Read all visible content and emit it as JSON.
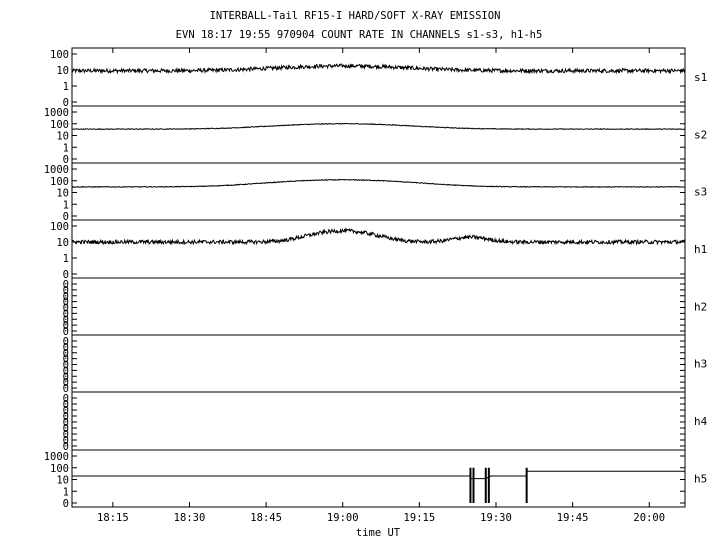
{
  "title_line1": "INTERBALL-Tail RF15-I HARD/SOFT X-RAY EMISSION",
  "title_line2": "EVN 18:17 19:55 970904  COUNT RATE IN CHANNELS s1-s3, h1-h5",
  "chart_data": {
    "type": "line",
    "title": "INTERBALL-Tail RF15-I HARD/SOFT X-RAY EMISSION",
    "subtitle": "EVN 18:17 19:55 970904  COUNT RATE IN CHANNELS s1-s3, h1-h5",
    "xlabel": "time UT",
    "x_ticks": [
      "18:15",
      "18:30",
      "18:45",
      "19:00",
      "19:15",
      "19:30",
      "19:45",
      "20:00"
    ],
    "x_range_minutes_UT": [
      "18:07",
      "20:07"
    ],
    "y_scale": "log",
    "grid": false,
    "panels": [
      {
        "name": "s1",
        "y_ticks": [
          "100",
          "10",
          "1",
          "0"
        ],
        "baseline": 9,
        "peak": 18,
        "peak_time": "19:00"
      },
      {
        "name": "s2",
        "y_ticks": [
          "1000",
          "100",
          "10",
          "1",
          "0"
        ],
        "baseline": 35,
        "peak": 100,
        "peak_time": "19:00"
      },
      {
        "name": "s3",
        "y_ticks": [
          "1000",
          "100",
          "10",
          "1",
          "0"
        ],
        "baseline": 30,
        "peak": 120,
        "peak_time": "19:00"
      },
      {
        "name": "h1",
        "y_ticks": [
          "100",
          "10",
          "1",
          "0"
        ],
        "baseline": 10,
        "peak": 50,
        "peak_time": "19:00",
        "secondary_peak": 20,
        "secondary_peak_time": "19:25"
      },
      {
        "name": "h2",
        "y_ticks": [
          "0",
          "0",
          "0",
          "0",
          "0",
          "0",
          "0",
          "0",
          "0"
        ],
        "baseline": null
      },
      {
        "name": "h3",
        "y_ticks": [
          "0",
          "0",
          "0",
          "0",
          "0",
          "0",
          "0",
          "0",
          "0"
        ],
        "baseline": null
      },
      {
        "name": "h4",
        "y_ticks": [
          "0",
          "0",
          "0",
          "0",
          "0",
          "0",
          "0",
          "0",
          "0"
        ],
        "baseline": null
      },
      {
        "name": "h5",
        "y_ticks": [
          "1000",
          "100",
          "10",
          "1",
          "0"
        ],
        "baseline": 20,
        "steps": [
          {
            "from": "18:07",
            "to": "19:25",
            "value": 20
          },
          {
            "from": "19:25",
            "to": "19:28",
            "value": 12
          },
          {
            "from": "19:29",
            "to": "19:36",
            "value": 20
          },
          {
            "from": "19:36",
            "to": "20:07",
            "value": 50
          }
        ]
      }
    ]
  }
}
